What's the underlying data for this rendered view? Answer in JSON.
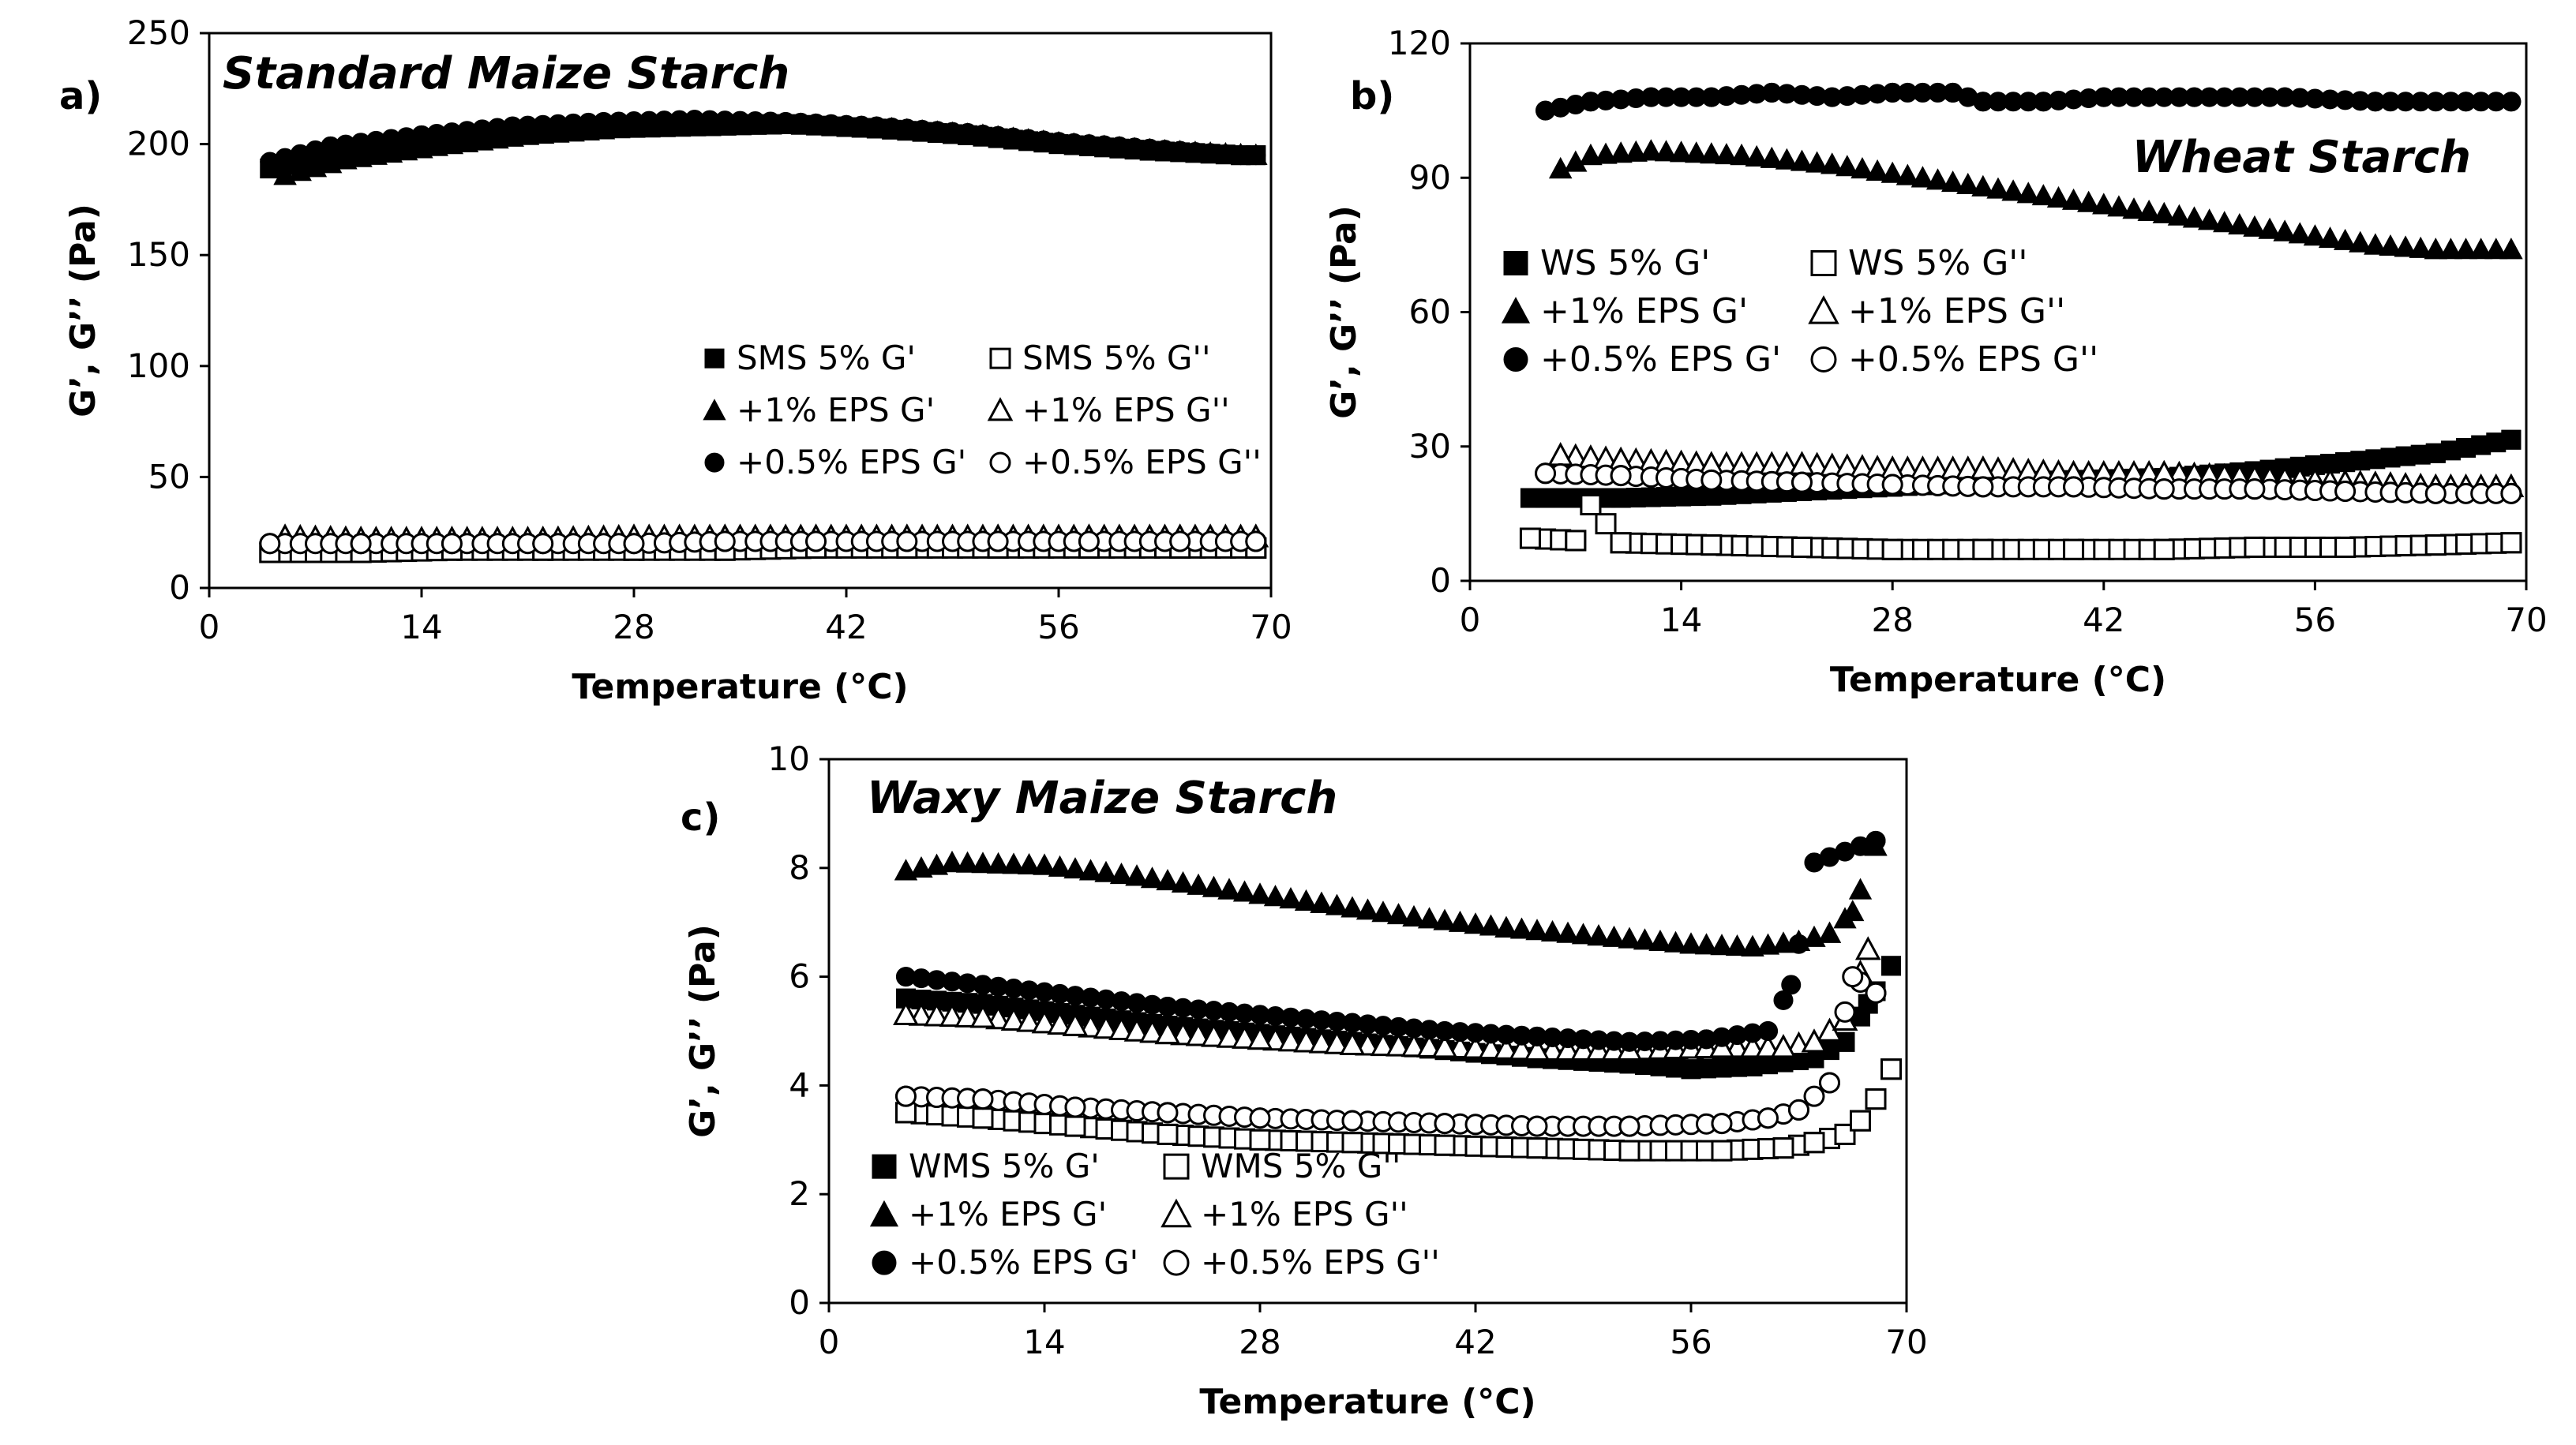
{
  "chart_data": [
    {
      "id": "a",
      "panel_label": "a)",
      "type": "scatter",
      "title": "Standard Maize Starch",
      "xlabel": "Temperature (°C)",
      "ylabel": "G’, G’’ (Pa)",
      "xlim": [
        0,
        70
      ],
      "ylim": [
        0,
        250
      ],
      "xticks": [
        0,
        14,
        28,
        42,
        56,
        70
      ],
      "yticks": [
        0,
        50,
        100,
        150,
        200,
        250
      ],
      "grid": false,
      "legend_position": "right-middle",
      "series": [
        {
          "name": "SMS 5% G'",
          "marker": "square",
          "filled": true,
          "points": [
            [
              4,
              189
            ],
            [
              8,
              195
            ],
            [
              14,
              200
            ],
            [
              20,
              204
            ],
            [
              26,
              207
            ],
            [
              32,
              209
            ],
            [
              38,
              209
            ],
            [
              44,
              207
            ],
            [
              50,
              204
            ],
            [
              56,
              200
            ],
            [
              62,
              197
            ],
            [
              68,
              195
            ],
            [
              69,
              195
            ]
          ]
        },
        {
          "name": "SMS 5% G''",
          "marker": "square",
          "filled": false,
          "points": [
            [
              4,
              16
            ],
            [
              10,
              16
            ],
            [
              16,
              17
            ],
            [
              22,
              17
            ],
            [
              28,
              17
            ],
            [
              34,
              17
            ],
            [
              40,
              18
            ],
            [
              46,
              18
            ],
            [
              52,
              18
            ],
            [
              58,
              18
            ],
            [
              64,
              18
            ],
            [
              69,
              18
            ]
          ]
        },
        {
          "name": "+1% EPS G'",
          "marker": "triangle",
          "filled": true,
          "points": [
            [
              5,
              186
            ],
            [
              9,
              193
            ],
            [
              15,
              199
            ],
            [
              21,
              204
            ],
            [
              27,
              207
            ],
            [
              33,
              208
            ],
            [
              39,
              209
            ],
            [
              45,
              207
            ],
            [
              51,
              204
            ],
            [
              57,
              200
            ],
            [
              63,
              197
            ],
            [
              69,
              195
            ]
          ]
        },
        {
          "name": "+1% EPS G''",
          "marker": "triangle",
          "filled": false,
          "points": [
            [
              5,
              23
            ],
            [
              10,
              22
            ],
            [
              16,
              22
            ],
            [
              22,
              22
            ],
            [
              28,
              23
            ],
            [
              34,
              23
            ],
            [
              40,
              23
            ],
            [
              46,
              23
            ],
            [
              52,
              23
            ],
            [
              58,
              23
            ],
            [
              64,
              23
            ],
            [
              69,
              23
            ]
          ]
        },
        {
          "name": "+0.5% EPS G'",
          "marker": "circle",
          "filled": true,
          "points": [
            [
              4,
              192
            ],
            [
              8,
              199
            ],
            [
              14,
              204
            ],
            [
              20,
              208
            ],
            [
              26,
              210
            ],
            [
              32,
              211
            ],
            [
              38,
              210
            ],
            [
              44,
              208
            ],
            [
              50,
              205
            ],
            [
              56,
              201
            ],
            [
              62,
              198
            ],
            [
              68,
              195
            ],
            [
              69,
              195
            ]
          ]
        },
        {
          "name": "+0.5% EPS G''",
          "marker": "circle",
          "filled": false,
          "points": [
            [
              4,
              20
            ],
            [
              10,
              20
            ],
            [
              16,
              20
            ],
            [
              22,
              20
            ],
            [
              28,
              20
            ],
            [
              34,
              21
            ],
            [
              40,
              21
            ],
            [
              46,
              21
            ],
            [
              52,
              21
            ],
            [
              58,
              21
            ],
            [
              64,
              21
            ],
            [
              69,
              21
            ]
          ]
        }
      ]
    },
    {
      "id": "b",
      "panel_label": "b)",
      "type": "scatter",
      "title": "Wheat Starch",
      "xlabel": "Temperature (°C)",
      "ylabel": "G’, G’’ (Pa)",
      "xlim": [
        0,
        70
      ],
      "ylim": [
        0,
        120
      ],
      "xticks": [
        0,
        14,
        28,
        42,
        56,
        70
      ],
      "yticks": [
        0,
        30,
        60,
        90,
        120
      ],
      "grid": false,
      "legend_position": "left-middle",
      "series": [
        {
          "name": "WS 5% G'",
          "marker": "square",
          "filled": true,
          "points": [
            [
              4,
              18.5
            ],
            [
              10,
              18.5
            ],
            [
              16,
              19
            ],
            [
              22,
              20
            ],
            [
              28,
              21
            ],
            [
              34,
              22
            ],
            [
              40,
              22.5
            ],
            [
              46,
              23
            ],
            [
              52,
              24.5
            ],
            [
              58,
              26.5
            ],
            [
              64,
              28.5
            ],
            [
              69,
              31.5
            ]
          ]
        },
        {
          "name": "WS 5% G''",
          "marker": "square",
          "filled": false,
          "points": [
            [
              4,
              9.5
            ],
            [
              7,
              9
            ],
            [
              8,
              17
            ],
            [
              10,
              8.5
            ],
            [
              16,
              8
            ],
            [
              22,
              7.5
            ],
            [
              28,
              7
            ],
            [
              34,
              7
            ],
            [
              40,
              7
            ],
            [
              46,
              7
            ],
            [
              52,
              7.5
            ],
            [
              58,
              7.5
            ],
            [
              64,
              8
            ],
            [
              69,
              8.5
            ]
          ]
        },
        {
          "name": "+1% EPS G'",
          "marker": "triangle",
          "filled": true,
          "points": [
            [
              6,
              92
            ],
            [
              8,
              95
            ],
            [
              12,
              96
            ],
            [
              18,
              95
            ],
            [
              24,
              93
            ],
            [
              30,
              90
            ],
            [
              36,
              87
            ],
            [
              42,
              84
            ],
            [
              48,
              81
            ],
            [
              54,
              78
            ],
            [
              60,
              75
            ],
            [
              64,
              74
            ],
            [
              69,
              74
            ]
          ]
        },
        {
          "name": "+1% EPS G''",
          "marker": "triangle",
          "filled": false,
          "points": [
            [
              6,
              28
            ],
            [
              10,
              27
            ],
            [
              16,
              26
            ],
            [
              22,
              26
            ],
            [
              28,
              25
            ],
            [
              34,
              25
            ],
            [
              40,
              24
            ],
            [
              46,
              24
            ],
            [
              52,
              23
            ],
            [
              58,
              22
            ],
            [
              64,
              21
            ],
            [
              69,
              21
            ]
          ]
        },
        {
          "name": "+0.5% EPS G'",
          "marker": "circle",
          "filled": true,
          "points": [
            [
              5,
              105
            ],
            [
              8,
              107
            ],
            [
              12,
              108
            ],
            [
              16,
              108
            ],
            [
              20,
              109
            ],
            [
              24,
              108
            ],
            [
              28,
              109
            ],
            [
              32,
              109
            ],
            [
              34,
              107
            ],
            [
              38,
              107
            ],
            [
              42,
              108
            ],
            [
              48,
              108
            ],
            [
              54,
              108
            ],
            [
              60,
              107
            ],
            [
              66,
              107
            ],
            [
              69,
              107
            ]
          ]
        },
        {
          "name": "+0.5% EPS G''",
          "marker": "circle",
          "filled": false,
          "points": [
            [
              5,
              24
            ],
            [
              10,
              23.5
            ],
            [
              16,
              22.5
            ],
            [
              22,
              22
            ],
            [
              28,
              21.5
            ],
            [
              34,
              21
            ],
            [
              40,
              21
            ],
            [
              46,
              20.5
            ],
            [
              52,
              20.5
            ],
            [
              58,
              20
            ],
            [
              64,
              19.5
            ],
            [
              69,
              19.5
            ]
          ]
        }
      ]
    },
    {
      "id": "c",
      "panel_label": "c)",
      "type": "scatter",
      "title": "Waxy Maize Starch",
      "xlabel": "Temperature (°C)",
      "ylabel": "G’, G’’ (Pa)",
      "xlim": [
        0,
        70
      ],
      "ylim": [
        0,
        10
      ],
      "xticks": [
        0,
        14,
        28,
        42,
        56,
        70
      ],
      "yticks": [
        0,
        2,
        4,
        6,
        8,
        10
      ],
      "grid": false,
      "legend_position": "bottom-left",
      "series": [
        {
          "name": "WMS 5% G'",
          "marker": "square",
          "filled": true,
          "points": [
            [
              5,
              5.6
            ],
            [
              10,
              5.5
            ],
            [
              16,
              5.3
            ],
            [
              22,
              5.1
            ],
            [
              28,
              4.95
            ],
            [
              34,
              4.8
            ],
            [
              40,
              4.65
            ],
            [
              46,
              4.5
            ],
            [
              52,
              4.4
            ],
            [
              56,
              4.3
            ],
            [
              60,
              4.35
            ],
            [
              64,
              4.5
            ],
            [
              66,
              4.8
            ],
            [
              67.5,
              5.5
            ],
            [
              69,
              6.2
            ]
          ]
        },
        {
          "name": "WMS 5% G''",
          "marker": "square",
          "filled": false,
          "points": [
            [
              5,
              3.5
            ],
            [
              10,
              3.4
            ],
            [
              16,
              3.25
            ],
            [
              22,
              3.1
            ],
            [
              28,
              3.0
            ],
            [
              34,
              2.95
            ],
            [
              40,
              2.9
            ],
            [
              46,
              2.85
            ],
            [
              52,
              2.8
            ],
            [
              58,
              2.8
            ],
            [
              62,
              2.85
            ],
            [
              64,
              2.95
            ],
            [
              66,
              3.1
            ],
            [
              67,
              3.35
            ],
            [
              68,
              3.75
            ],
            [
              69,
              4.3
            ]
          ]
        },
        {
          "name": "+1% EPS G'",
          "marker": "triangle",
          "filled": true,
          "points": [
            [
              5,
              7.95
            ],
            [
              8,
              8.1
            ],
            [
              14,
              8.05
            ],
            [
              20,
              7.85
            ],
            [
              26,
              7.6
            ],
            [
              32,
              7.35
            ],
            [
              38,
              7.1
            ],
            [
              44,
              6.9
            ],
            [
              50,
              6.75
            ],
            [
              56,
              6.6
            ],
            [
              60,
              6.55
            ],
            [
              63,
              6.65
            ],
            [
              65,
              6.8
            ],
            [
              66.5,
              7.2
            ],
            [
              68,
              8.4
            ]
          ]
        },
        {
          "name": "+1% EPS G''",
          "marker": "triangle",
          "filled": false,
          "points": [
            [
              5,
              5.3
            ],
            [
              10,
              5.25
            ],
            [
              16,
              5.1
            ],
            [
              22,
              4.95
            ],
            [
              28,
              4.85
            ],
            [
              34,
              4.75
            ],
            [
              40,
              4.7
            ],
            [
              46,
              4.65
            ],
            [
              52,
              4.65
            ],
            [
              58,
              4.7
            ],
            [
              62,
              4.7
            ],
            [
              64,
              4.8
            ],
            [
              66,
              5.2
            ],
            [
              67.5,
              6.5
            ]
          ]
        },
        {
          "name": "+0.5% EPS G'",
          "marker": "circle",
          "filled": true,
          "points": [
            [
              5,
              6.0
            ],
            [
              10,
              5.85
            ],
            [
              16,
              5.65
            ],
            [
              22,
              5.45
            ],
            [
              28,
              5.3
            ],
            [
              34,
              5.15
            ],
            [
              40,
              5.0
            ],
            [
              46,
              4.9
            ],
            [
              52,
              4.8
            ],
            [
              57,
              4.85
            ],
            [
              61,
              5.0
            ],
            [
              62.5,
              5.85
            ],
            [
              64,
              8.1
            ],
            [
              68,
              8.5
            ]
          ]
        },
        {
          "name": "+0.5% EPS G''",
          "marker": "circle",
          "filled": false,
          "points": [
            [
              5,
              3.8
            ],
            [
              10,
              3.75
            ],
            [
              16,
              3.6
            ],
            [
              22,
              3.5
            ],
            [
              28,
              3.4
            ],
            [
              34,
              3.35
            ],
            [
              40,
              3.3
            ],
            [
              46,
              3.25
            ],
            [
              52,
              3.25
            ],
            [
              58,
              3.3
            ],
            [
              61,
              3.4
            ],
            [
              63,
              3.55
            ],
            [
              65,
              4.05
            ],
            [
              66.5,
              6.0
            ],
            [
              68,
              5.7
            ]
          ]
        }
      ]
    }
  ]
}
